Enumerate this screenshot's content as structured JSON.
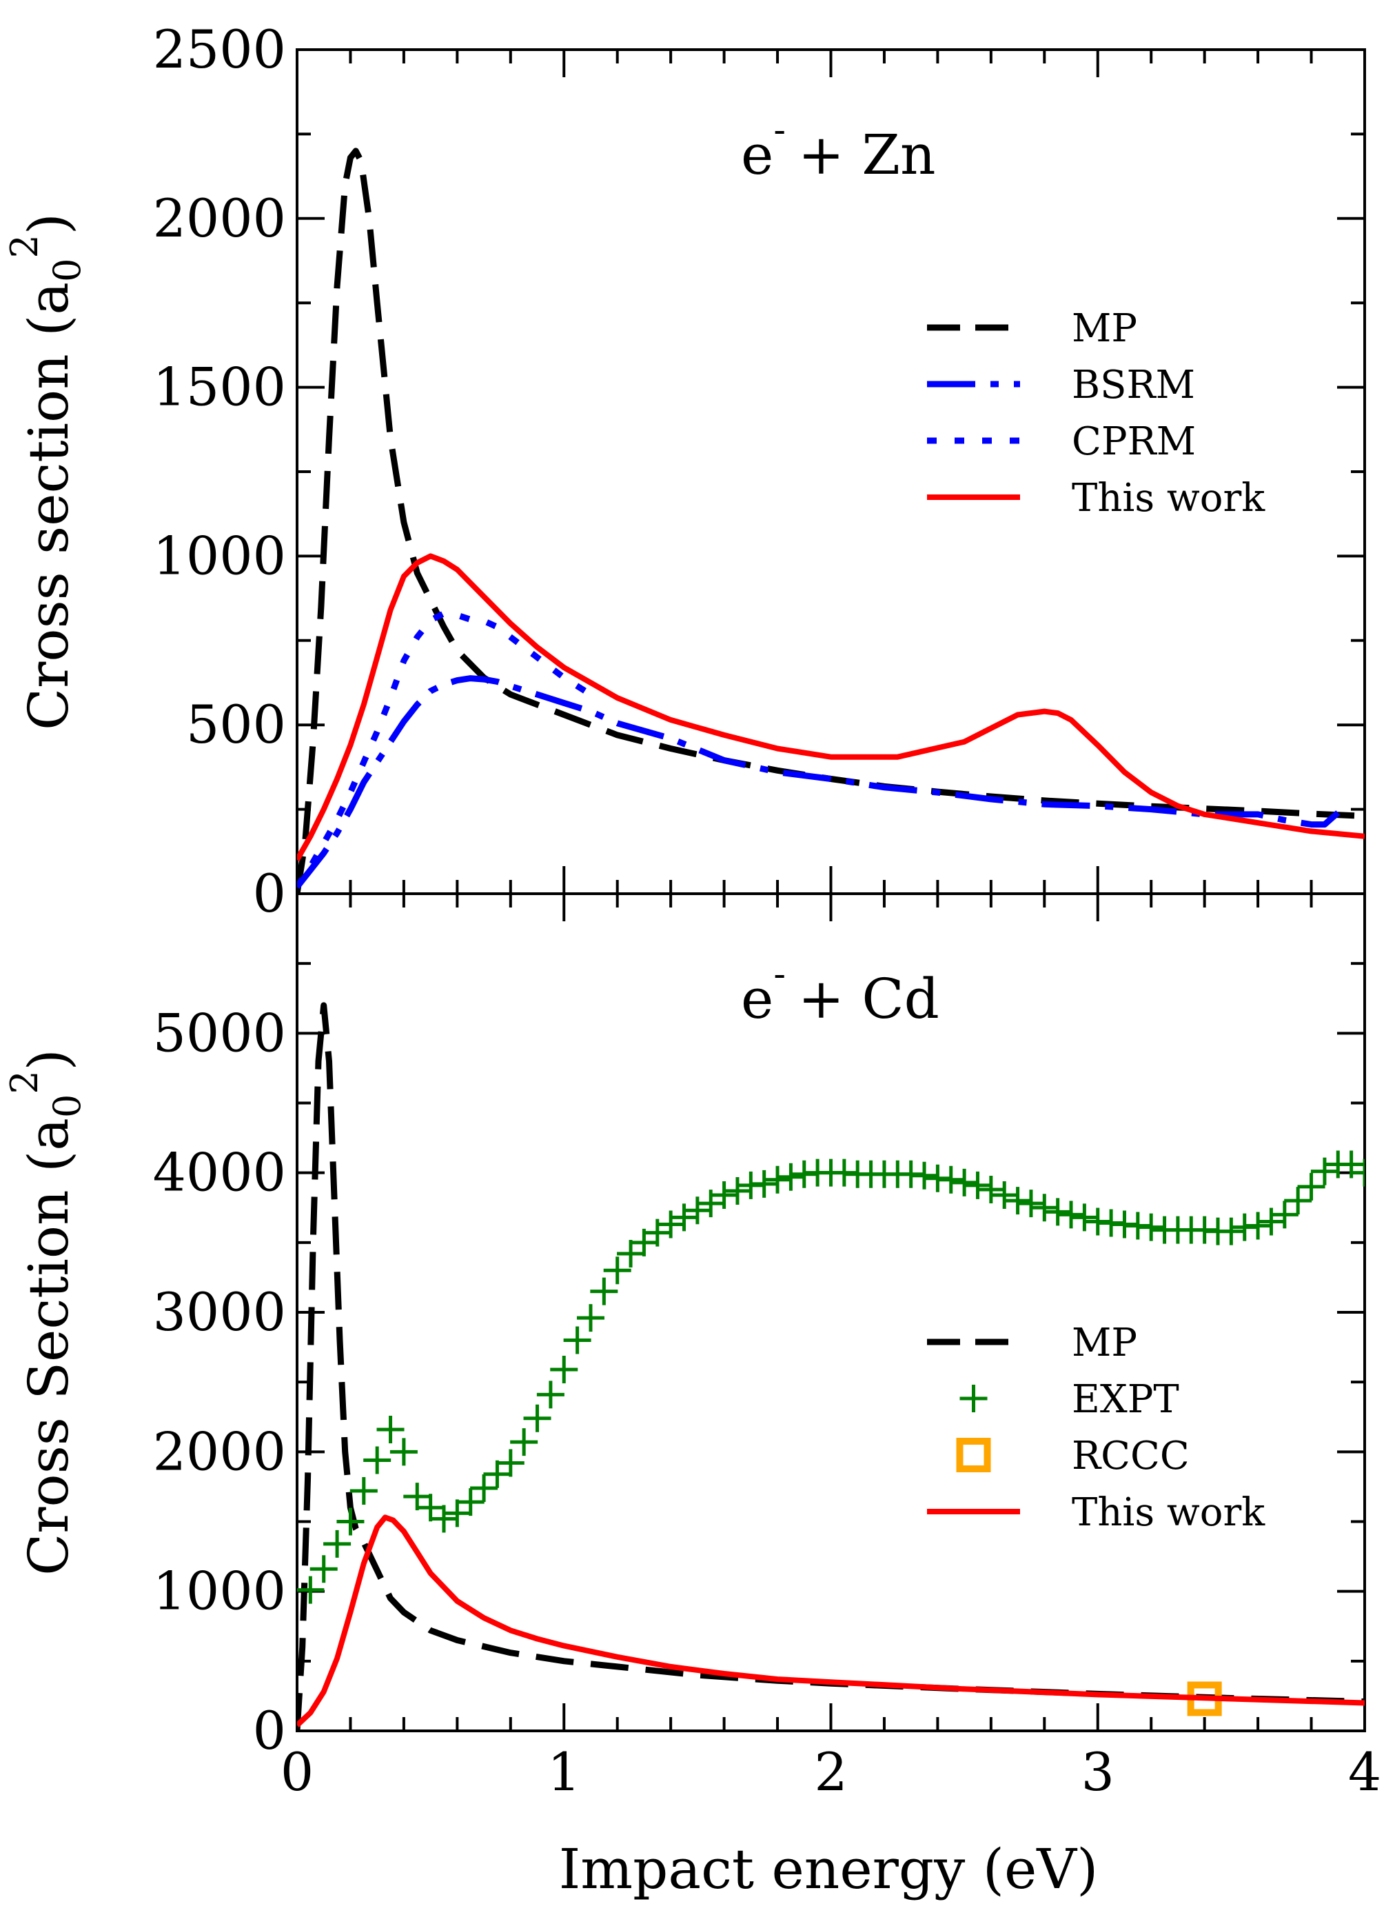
{
  "chart_data": [
    {
      "type": "line",
      "title": "e",
      "title_superscript": "-",
      "title_rest": "+ Zn",
      "ylabel": "Cross section (a",
      "ylabel_sub": "0",
      "ylabel_sup": "2",
      "ylabel_close": ")",
      "xlim": [
        0,
        4
      ],
      "ylim": [
        0,
        2500
      ],
      "yticks": [
        "0",
        "500",
        "1000",
        "1500",
        "2000",
        "2500"
      ],
      "ytick_values": [
        0,
        500,
        1000,
        1500,
        2000,
        2500
      ],
      "legend_position": "right",
      "series": [
        {
          "name": "MP",
          "style": "dashed",
          "color": "#000000",
          "x": [
            0.0,
            0.03,
            0.06,
            0.09,
            0.12,
            0.15,
            0.18,
            0.2,
            0.22,
            0.24,
            0.27,
            0.3,
            0.35,
            0.4,
            0.45,
            0.5,
            0.55,
            0.6,
            0.7,
            0.8,
            0.9,
            1.0,
            1.2,
            1.4,
            1.6,
            1.8,
            2.0,
            2.2,
            2.4,
            2.6,
            2.8,
            3.0,
            3.2,
            3.4,
            3.6,
            3.8,
            4.0
          ],
          "y": [
            0,
            150,
            450,
            850,
            1350,
            1800,
            2100,
            2180,
            2200,
            2170,
            2000,
            1750,
            1350,
            1100,
            950,
            870,
            790,
            720,
            640,
            590,
            560,
            530,
            470,
            430,
            395,
            365,
            340,
            318,
            302,
            288,
            276,
            267,
            259,
            252,
            245,
            237,
            230
          ]
        },
        {
          "name": "BSRM",
          "style": "dashdot",
          "color": "#0000ff",
          "x": [
            0.0,
            0.05,
            0.1,
            0.15,
            0.2,
            0.25,
            0.3,
            0.35,
            0.4,
            0.45,
            0.5,
            0.55,
            0.6,
            0.65,
            0.7,
            0.75,
            0.8,
            0.9,
            1.0,
            1.1,
            1.2,
            1.4,
            1.6,
            1.8,
            2.0,
            2.2,
            2.4,
            2.6,
            2.8,
            3.0,
            3.2,
            3.4,
            3.6,
            3.7,
            3.8,
            3.85,
            3.9
          ],
          "y": [
            20,
            70,
            120,
            180,
            250,
            330,
            390,
            450,
            510,
            560,
            600,
            620,
            632,
            638,
            635,
            628,
            615,
            590,
            565,
            540,
            505,
            460,
            395,
            360,
            340,
            315,
            300,
            280,
            265,
            260,
            250,
            235,
            235,
            218,
            205,
            205,
            240
          ]
        },
        {
          "name": "CPRM",
          "style": "dotted",
          "color": "#0000ff",
          "x": [
            0.0,
            0.05,
            0.1,
            0.15,
            0.2,
            0.25,
            0.3,
            0.35,
            0.4,
            0.45,
            0.5,
            0.55,
            0.6,
            0.65,
            0.7,
            0.75,
            0.8,
            0.9,
            1.0,
            1.1
          ],
          "y": [
            20,
            80,
            150,
            220,
            300,
            390,
            480,
            580,
            690,
            760,
            810,
            830,
            825,
            812,
            808,
            790,
            760,
            700,
            640,
            590
          ]
        },
        {
          "name": "This work",
          "style": "solid",
          "color": "#ff0000",
          "x": [
            0.0,
            0.05,
            0.1,
            0.15,
            0.2,
            0.25,
            0.3,
            0.35,
            0.4,
            0.45,
            0.5,
            0.55,
            0.6,
            0.7,
            0.8,
            0.9,
            1.0,
            1.2,
            1.4,
            1.6,
            1.8,
            2.0,
            2.25,
            2.5,
            2.6,
            2.7,
            2.8,
            2.85,
            2.9,
            3.0,
            3.1,
            3.2,
            3.3,
            3.4,
            3.6,
            3.8,
            4.0
          ],
          "y": [
            100,
            170,
            250,
            340,
            440,
            560,
            700,
            840,
            940,
            980,
            1000,
            985,
            960,
            880,
            800,
            730,
            670,
            580,
            515,
            470,
            430,
            405,
            405,
            450,
            490,
            530,
            540,
            535,
            515,
            440,
            360,
            300,
            260,
            235,
            210,
            185,
            170
          ]
        }
      ]
    },
    {
      "type": "line",
      "title": "e",
      "title_superscript": "-",
      "title_rest": "+ Cd",
      "ylabel": "Cross Section (a",
      "ylabel_sub": "0",
      "ylabel_sup": "2",
      "ylabel_close": ")",
      "xlabel": "Impact energy (eV)",
      "xlim": [
        0,
        4
      ],
      "ylim": [
        0,
        6000
      ],
      "xticks": [
        "0",
        "1",
        "2",
        "3",
        "4"
      ],
      "xtick_values": [
        0,
        1,
        2,
        3,
        4
      ],
      "yticks": [
        "0",
        "1000",
        "2000",
        "3000",
        "4000",
        "5000"
      ],
      "ytick_values": [
        0,
        1000,
        2000,
        3000,
        4000,
        5000
      ],
      "legend_position": "right",
      "series": [
        {
          "name": "MP",
          "style": "dashed",
          "color": "#000000",
          "x": [
            0.0,
            0.02,
            0.04,
            0.06,
            0.08,
            0.1,
            0.12,
            0.14,
            0.16,
            0.18,
            0.2,
            0.22,
            0.25,
            0.3,
            0.35,
            0.4,
            0.5,
            0.6,
            0.8,
            1.0,
            1.2,
            1.5,
            1.8,
            2.0,
            2.5,
            3.0,
            3.5,
            4.0
          ],
          "y": [
            0,
            600,
            1800,
            3500,
            4800,
            5200,
            4800,
            3800,
            2800,
            2000,
            1600,
            1450,
            1350,
            1150,
            950,
            850,
            720,
            650,
            560,
            500,
            460,
            400,
            360,
            340,
            300,
            265,
            235,
            210
          ]
        },
        {
          "name": "EXPT",
          "style": "marker-plus",
          "color": "#008000",
          "x": [
            0.05,
            0.1,
            0.15,
            0.2,
            0.25,
            0.3,
            0.35,
            0.4,
            0.45,
            0.5,
            0.55,
            0.6,
            0.65,
            0.7,
            0.75,
            0.8,
            0.85,
            0.9,
            0.95,
            1.0,
            1.05,
            1.1,
            1.15,
            1.2,
            1.25,
            1.3,
            1.35,
            1.4,
            1.45,
            1.5,
            1.55,
            1.6,
            1.65,
            1.7,
            1.75,
            1.8,
            1.85,
            1.9,
            1.95,
            2.0,
            2.05,
            2.1,
            2.15,
            2.2,
            2.25,
            2.3,
            2.35,
            2.4,
            2.45,
            2.5,
            2.55,
            2.6,
            2.65,
            2.7,
            2.75,
            2.8,
            2.85,
            2.9,
            2.95,
            3.0,
            3.05,
            3.1,
            3.15,
            3.2,
            3.25,
            3.3,
            3.35,
            3.4,
            3.45,
            3.5,
            3.55,
            3.6,
            3.65,
            3.7,
            3.75,
            3.8,
            3.85,
            3.9,
            3.95,
            4.0
          ],
          "y": [
            1010,
            1160,
            1340,
            1500,
            1720,
            1940,
            2160,
            2000,
            1680,
            1600,
            1520,
            1560,
            1640,
            1740,
            1840,
            1920,
            2070,
            2240,
            2410,
            2590,
            2800,
            2960,
            3150,
            3300,
            3420,
            3500,
            3570,
            3630,
            3680,
            3730,
            3780,
            3840,
            3870,
            3910,
            3920,
            3950,
            3970,
            3990,
            4000,
            4000,
            4000,
            3990,
            3990,
            3990,
            3990,
            3990,
            3980,
            3960,
            3950,
            3930,
            3910,
            3880,
            3840,
            3800,
            3780,
            3750,
            3720,
            3700,
            3680,
            3650,
            3640,
            3630,
            3620,
            3610,
            3590,
            3590,
            3590,
            3590,
            3580,
            3580,
            3610,
            3620,
            3650,
            3700,
            3800,
            3900,
            4010,
            4060,
            4060,
            4000
          ]
        },
        {
          "name": "RCCC",
          "style": "marker-square",
          "color": "#ffa500",
          "x": [
            3.4
          ],
          "y": [
            230
          ]
        },
        {
          "name": "This work",
          "style": "solid",
          "color": "#ff0000",
          "x": [
            0.0,
            0.05,
            0.1,
            0.15,
            0.2,
            0.25,
            0.3,
            0.33,
            0.36,
            0.4,
            0.45,
            0.5,
            0.6,
            0.7,
            0.8,
            0.9,
            1.0,
            1.2,
            1.4,
            1.6,
            1.8,
            2.0,
            2.5,
            3.0,
            3.5,
            4.0
          ],
          "y": [
            40,
            130,
            280,
            520,
            850,
            1200,
            1460,
            1530,
            1510,
            1430,
            1280,
            1130,
            930,
            810,
            720,
            660,
            610,
            530,
            460,
            410,
            370,
            350,
            300,
            260,
            230,
            200
          ]
        }
      ]
    }
  ]
}
